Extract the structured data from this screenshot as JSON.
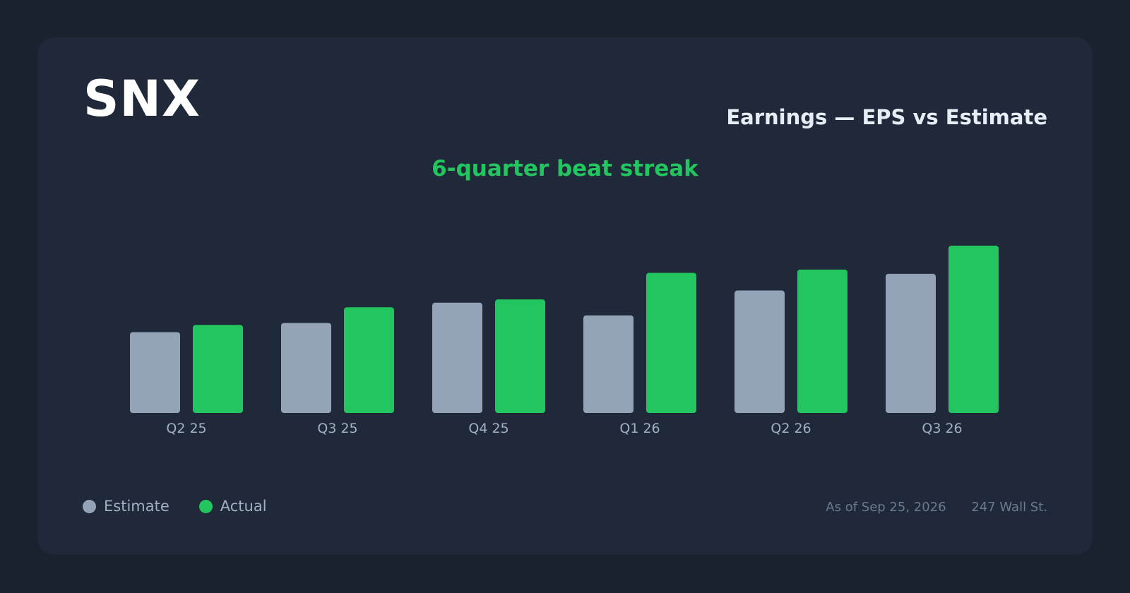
{
  "header": {
    "ticker": "SNX",
    "title": "Earnings — EPS vs Estimate",
    "subtitle": "6-quarter beat streak"
  },
  "legend": {
    "items": [
      {
        "label": "Estimate",
        "color": "#94a3b8"
      },
      {
        "label": "Actual",
        "color": "#22c55e"
      }
    ]
  },
  "footer": {
    "as_of": "As of Sep 25, 2026",
    "source": "247 Wall St."
  },
  "chart_data": {
    "type": "bar",
    "categories": [
      "Q2 25",
      "Q3 25",
      "Q4 25",
      "Q1 26",
      "Q2 26",
      "Q3 26"
    ],
    "series": [
      {
        "name": "Estimate",
        "color": "#94a3b8",
        "values": [
          2.47,
          2.75,
          3.37,
          2.98,
          3.74,
          4.25
        ]
      },
      {
        "name": "Actual",
        "color": "#22c55e",
        "values": [
          2.69,
          3.23,
          3.47,
          4.28,
          4.38,
          5.11
        ]
      }
    ],
    "ylim": [
      0,
      5.11
    ],
    "grid": false,
    "legend_position": "bottom-left"
  }
}
